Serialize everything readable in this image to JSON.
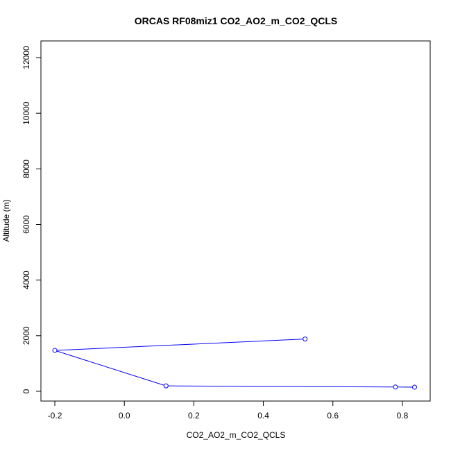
{
  "chart_data": {
    "type": "line",
    "title": "ORCAS RF08miz1 CO2_AO2_m_CO2_QCLS",
    "xlabel": "CO2_AO2_m_CO2_QCLS",
    "ylabel": "Altitude (m)",
    "xlim": [
      -0.24,
      0.88
    ],
    "ylim": [
      -350,
      12600
    ],
    "x_ticks": [
      -0.2,
      0.0,
      0.2,
      0.4,
      0.6,
      0.8
    ],
    "x_tick_labels": [
      "-0.2",
      "0.0",
      "0.2",
      "0.4",
      "0.6",
      "0.8"
    ],
    "y_ticks": [
      0,
      2000,
      4000,
      6000,
      8000,
      10000,
      12000
    ],
    "y_tick_labels": [
      "0",
      "2000",
      "4000",
      "6000",
      "8000",
      "10000",
      "12000"
    ],
    "grid": false,
    "series": [
      {
        "color": "#0000ff",
        "marker": "open-circle",
        "x": [
          0.52,
          -0.2,
          0.12,
          0.78,
          0.835
        ],
        "y": [
          1880,
          1470,
          195,
          155,
          150
        ]
      }
    ]
  }
}
